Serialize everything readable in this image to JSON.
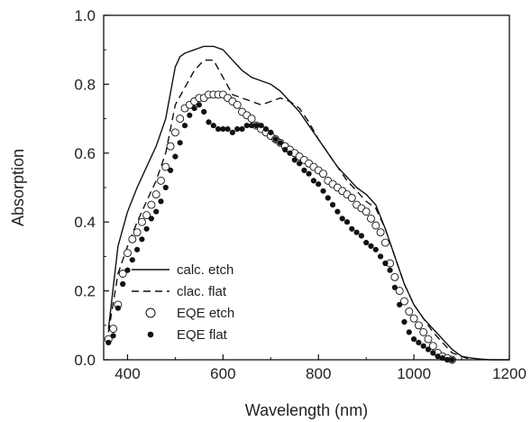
{
  "chart_data": {
    "type": "line",
    "title": "",
    "xlabel": "Wavelength (nm)",
    "ylabel": "Absorption",
    "xlim": [
      350,
      1200
    ],
    "ylim": [
      0.0,
      1.0
    ],
    "x_ticks": [
      400,
      600,
      800,
      1000,
      1200
    ],
    "y_ticks": [
      0.0,
      0.2,
      0.4,
      0.6,
      0.8,
      1.0
    ],
    "x_tick_labels": [
      "400",
      "600",
      "800",
      "1000",
      "1200"
    ],
    "y_tick_labels": [
      "0.0",
      "0.2",
      "0.4",
      "0.6",
      "0.8",
      "1.0"
    ],
    "grid": false,
    "legend_position": "bottom-left",
    "series": [
      {
        "name": "calc. etch",
        "style": "solid-line",
        "x": [
          360,
          380,
          400,
          420,
          440,
          460,
          480,
          500,
          510,
          520,
          540,
          560,
          580,
          600,
          620,
          640,
          660,
          680,
          700,
          720,
          740,
          760,
          780,
          800,
          820,
          840,
          860,
          880,
          900,
          920,
          940,
          960,
          980,
          1000,
          1020,
          1040,
          1060,
          1080,
          1100,
          1120,
          1140,
          1160,
          1180,
          1200
        ],
        "y": [
          0.09,
          0.33,
          0.43,
          0.5,
          0.56,
          0.62,
          0.7,
          0.85,
          0.88,
          0.89,
          0.9,
          0.91,
          0.91,
          0.9,
          0.87,
          0.84,
          0.82,
          0.81,
          0.8,
          0.78,
          0.75,
          0.72,
          0.68,
          0.64,
          0.6,
          0.56,
          0.53,
          0.5,
          0.48,
          0.45,
          0.38,
          0.3,
          0.22,
          0.16,
          0.12,
          0.09,
          0.06,
          0.03,
          0.01,
          0.005,
          0.002,
          0.0,
          0.0,
          0.0
        ]
      },
      {
        "name": "clac. flat",
        "style": "dashed-line",
        "x": [
          360,
          380,
          400,
          420,
          440,
          460,
          480,
          500,
          520,
          540,
          560,
          570,
          580,
          600,
          620,
          640,
          660,
          680,
          700,
          720,
          740,
          760,
          780,
          800,
          820,
          840,
          860,
          880,
          900,
          920,
          940,
          960,
          980,
          1000,
          1020,
          1040,
          1060,
          1080,
          1100,
          1120
        ],
        "y": [
          0.08,
          0.25,
          0.33,
          0.4,
          0.46,
          0.52,
          0.6,
          0.74,
          0.79,
          0.84,
          0.87,
          0.87,
          0.87,
          0.82,
          0.77,
          0.76,
          0.75,
          0.74,
          0.75,
          0.76,
          0.75,
          0.73,
          0.69,
          0.64,
          0.6,
          0.56,
          0.52,
          0.49,
          0.46,
          0.44,
          0.38,
          0.3,
          0.22,
          0.16,
          0.12,
          0.08,
          0.05,
          0.02,
          0.01,
          0.0
        ]
      },
      {
        "name": "EQE etch",
        "style": "open-circles",
        "x": [
          360,
          370,
          380,
          390,
          400,
          410,
          420,
          430,
          440,
          450,
          460,
          470,
          480,
          490,
          500,
          510,
          520,
          530,
          540,
          550,
          560,
          570,
          580,
          590,
          600,
          610,
          620,
          630,
          640,
          650,
          660,
          670,
          680,
          690,
          700,
          710,
          720,
          730,
          740,
          750,
          760,
          770,
          780,
          790,
          800,
          810,
          820,
          830,
          840,
          850,
          860,
          870,
          880,
          890,
          900,
          910,
          920,
          930,
          940,
          950,
          960,
          970,
          980,
          990,
          1000,
          1010,
          1020,
          1030,
          1040,
          1050,
          1060,
          1070,
          1080
        ],
        "y": [
          0.06,
          0.09,
          0.16,
          0.25,
          0.31,
          0.35,
          0.37,
          0.4,
          0.42,
          0.45,
          0.48,
          0.52,
          0.56,
          0.62,
          0.66,
          0.7,
          0.73,
          0.74,
          0.75,
          0.76,
          0.76,
          0.77,
          0.77,
          0.77,
          0.77,
          0.76,
          0.75,
          0.74,
          0.72,
          0.71,
          0.7,
          0.68,
          0.67,
          0.66,
          0.65,
          0.64,
          0.63,
          0.62,
          0.61,
          0.6,
          0.59,
          0.58,
          0.57,
          0.56,
          0.55,
          0.54,
          0.52,
          0.51,
          0.5,
          0.49,
          0.48,
          0.47,
          0.45,
          0.44,
          0.43,
          0.41,
          0.39,
          0.37,
          0.34,
          0.28,
          0.24,
          0.2,
          0.17,
          0.14,
          0.12,
          0.1,
          0.08,
          0.06,
          0.04,
          0.02,
          0.01,
          0.005,
          0.0
        ]
      },
      {
        "name": "EQE flat",
        "style": "filled-dots",
        "x": [
          360,
          370,
          380,
          390,
          400,
          410,
          420,
          430,
          440,
          450,
          460,
          470,
          480,
          490,
          500,
          510,
          520,
          530,
          540,
          550,
          560,
          570,
          580,
          590,
          600,
          610,
          620,
          630,
          640,
          650,
          660,
          670,
          680,
          690,
          700,
          710,
          720,
          730,
          740,
          750,
          760,
          770,
          780,
          790,
          800,
          810,
          820,
          830,
          840,
          850,
          860,
          870,
          880,
          890,
          900,
          910,
          920,
          930,
          940,
          950,
          960,
          970,
          980,
          990,
          1000,
          1010,
          1020,
          1030,
          1040,
          1050,
          1060,
          1070,
          1080
        ],
        "y": [
          0.05,
          0.07,
          0.15,
          0.22,
          0.26,
          0.29,
          0.32,
          0.35,
          0.38,
          0.41,
          0.43,
          0.46,
          0.5,
          0.55,
          0.59,
          0.63,
          0.68,
          0.71,
          0.73,
          0.74,
          0.72,
          0.69,
          0.68,
          0.67,
          0.67,
          0.67,
          0.66,
          0.67,
          0.67,
          0.68,
          0.68,
          0.68,
          0.68,
          0.67,
          0.66,
          0.64,
          0.63,
          0.61,
          0.6,
          0.58,
          0.57,
          0.55,
          0.54,
          0.52,
          0.51,
          0.49,
          0.47,
          0.45,
          0.43,
          0.41,
          0.4,
          0.38,
          0.37,
          0.36,
          0.34,
          0.33,
          0.32,
          0.3,
          0.28,
          0.26,
          0.21,
          0.16,
          0.11,
          0.08,
          0.06,
          0.05,
          0.04,
          0.03,
          0.02,
          0.01,
          0.005,
          0.0,
          0.0
        ]
      }
    ]
  },
  "legend": {
    "items": [
      {
        "label": "calc. etch",
        "symbol": "solid-line"
      },
      {
        "label": "clac. flat",
        "symbol": "dashed-line"
      },
      {
        "label": "EQE etch",
        "symbol": "open-circle"
      },
      {
        "label": "EQE flat",
        "symbol": "filled-dot"
      }
    ]
  },
  "colors": {
    "line": "#111111",
    "marker": "#111111",
    "background": "#ffffff"
  }
}
